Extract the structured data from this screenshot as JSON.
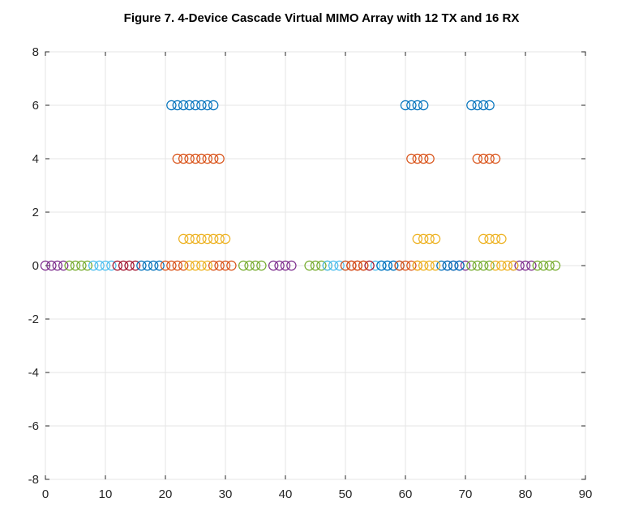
{
  "title": "Figure 7. 4-Device Cascade Virtual MIMO Array with 12 TX and 16 RX",
  "chart_data": {
    "type": "scatter",
    "marker": "circle-open",
    "grid": true,
    "xlim": [
      0,
      90
    ],
    "ylim": [
      -8,
      8
    ],
    "xticks": [
      0,
      10,
      20,
      30,
      40,
      50,
      60,
      70,
      80,
      90
    ],
    "yticks": [
      -8,
      -6,
      -4,
      -2,
      0,
      2,
      4,
      6,
      8
    ],
    "colors": [
      "#0072BD",
      "#D95319",
      "#EDB120",
      "#7E2F8E",
      "#77AC30",
      "#4DBEEE",
      "#A2142F"
    ],
    "series": [
      {
        "color": "#0072BD",
        "y": 6,
        "x": [
          21,
          22,
          23,
          24,
          25,
          26,
          27,
          28,
          60,
          61,
          62,
          63,
          71,
          72,
          73,
          74
        ]
      },
      {
        "color": "#D95319",
        "y": 4,
        "x": [
          22,
          23,
          24,
          25,
          26,
          27,
          28,
          29,
          61,
          62,
          63,
          64,
          72,
          73,
          74,
          75
        ]
      },
      {
        "color": "#EDB120",
        "y": 1,
        "x": [
          23,
          24,
          25,
          26,
          27,
          28,
          29,
          30,
          62,
          63,
          64,
          65,
          73,
          74,
          75,
          76
        ]
      },
      {
        "color": "#7E2F8E",
        "y": 0,
        "x": [
          0,
          1,
          2,
          3,
          38,
          39,
          40,
          41,
          67,
          68,
          69,
          70,
          78,
          79,
          80,
          81
        ]
      },
      {
        "color": "#77AC30",
        "y": 0,
        "x": [
          4,
          5,
          6,
          7,
          33,
          34,
          35,
          36,
          44,
          45,
          46,
          47,
          71,
          72,
          73,
          74,
          82,
          83,
          84,
          85
        ]
      },
      {
        "color": "#4DBEEE",
        "y": 0,
        "x": [
          8,
          9,
          10,
          11,
          47,
          48,
          49,
          50,
          55,
          56,
          57,
          58
        ]
      },
      {
        "color": "#A2142F",
        "y": 0,
        "x": [
          12,
          13,
          14,
          15,
          51,
          52,
          53,
          54
        ]
      },
      {
        "color": "#0072BD",
        "y": 0,
        "x": [
          16,
          17,
          18,
          19,
          56,
          57,
          58,
          59,
          66,
          67,
          68,
          69
        ]
      },
      {
        "color": "#D95319",
        "y": 0,
        "x": [
          20,
          21,
          22,
          23,
          28,
          29,
          30,
          31,
          50,
          51,
          52,
          53,
          59,
          60,
          61,
          62
        ]
      },
      {
        "color": "#EDB120",
        "y": 0,
        "x": [
          24,
          25,
          26,
          27,
          62,
          63,
          64,
          65,
          75,
          76,
          77,
          78
        ]
      }
    ]
  }
}
